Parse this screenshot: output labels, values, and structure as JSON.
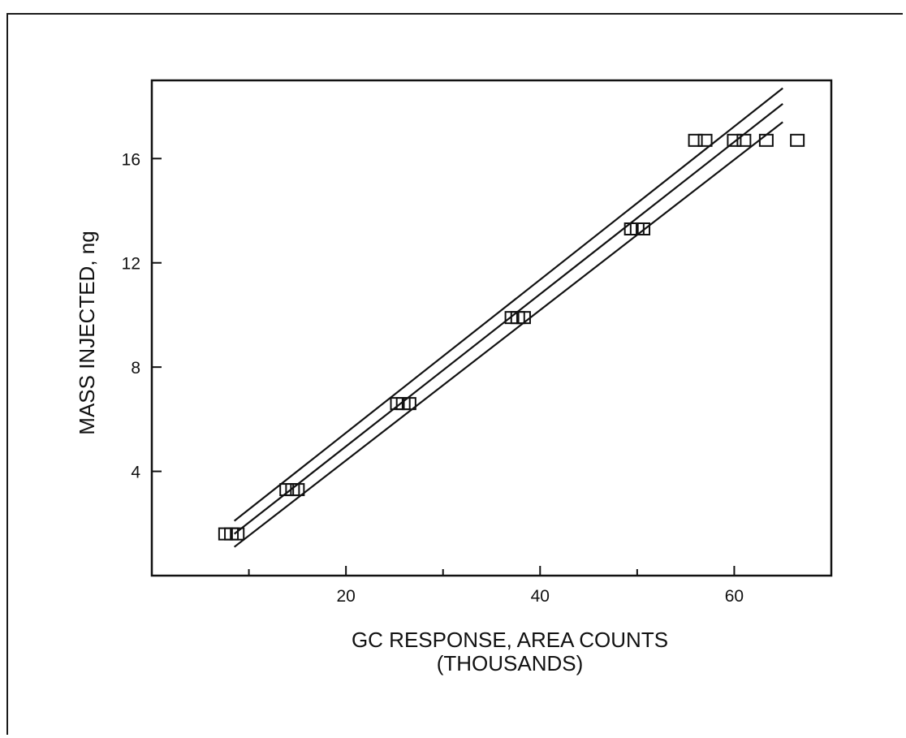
{
  "chart_data": {
    "type": "scatter",
    "title": "",
    "xlabel": "GC RESPONSE, AREA COUNTS",
    "xlabel_line2": "(THOUSANDS)",
    "ylabel": "MASS INJECTED, ng",
    "xlim": [
      0,
      70
    ],
    "ylim": [
      0,
      19
    ],
    "x_ticks": [
      20,
      40,
      60
    ],
    "x_minor_ticks": [
      10,
      30,
      50
    ],
    "y_ticks": [
      4,
      8,
      12,
      16
    ],
    "grid": false,
    "legend": "none",
    "series": [
      {
        "marker": "square",
        "points": [
          {
            "x": 7.6,
            "y": 1.6
          },
          {
            "x": 8.2,
            "y": 1.6
          },
          {
            "x": 8.8,
            "y": 1.6
          },
          {
            "x": 13.9,
            "y": 3.3
          },
          {
            "x": 14.5,
            "y": 3.3
          },
          {
            "x": 15.0,
            "y": 3.3
          },
          {
            "x": 25.3,
            "y": 6.6
          },
          {
            "x": 25.9,
            "y": 6.6
          },
          {
            "x": 26.5,
            "y": 6.6
          },
          {
            "x": 37.1,
            "y": 9.9
          },
          {
            "x": 37.7,
            "y": 9.9
          },
          {
            "x": 38.3,
            "y": 9.9
          },
          {
            "x": 49.4,
            "y": 13.3
          },
          {
            "x": 50.0,
            "y": 13.3
          },
          {
            "x": 50.6,
            "y": 13.3
          },
          {
            "x": 56.0,
            "y": 16.7
          },
          {
            "x": 57.0,
            "y": 16.7
          },
          {
            "x": 60.0,
            "y": 16.7
          },
          {
            "x": 61.0,
            "y": 16.7
          },
          {
            "x": 63.3,
            "y": 16.7
          },
          {
            "x": 66.5,
            "y": 16.7
          }
        ]
      }
    ],
    "fit_lines": [
      {
        "role": "upper",
        "x": [
          8.5,
          65.0
        ],
        "y": [
          2.1,
          18.7
        ]
      },
      {
        "role": "fit",
        "x": [
          8.5,
          65.0
        ],
        "y": [
          1.6,
          18.1
        ]
      },
      {
        "role": "lower",
        "x": [
          8.5,
          65.0
        ],
        "y": [
          1.1,
          17.4
        ]
      }
    ]
  }
}
